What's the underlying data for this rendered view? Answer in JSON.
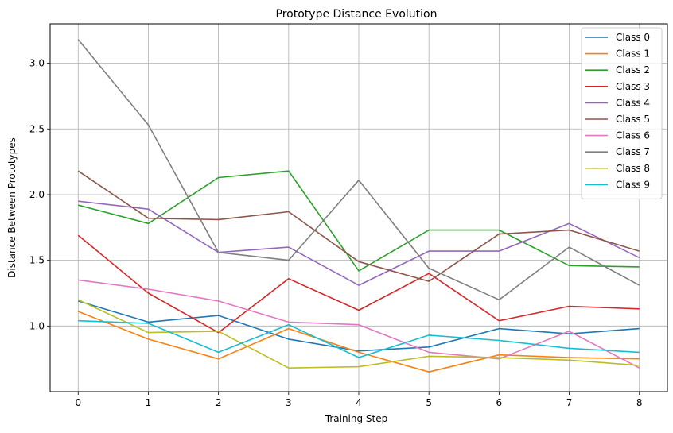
{
  "chart_data": {
    "type": "line",
    "title": "Prototype Distance Evolution",
    "xlabel": "Training Step",
    "ylabel": "Distance Between Prototypes",
    "x": [
      0,
      1,
      2,
      3,
      4,
      5,
      6,
      7,
      8
    ],
    "xlim": [
      -0.4,
      8.4
    ],
    "ylim": [
      0.5,
      3.3
    ],
    "xticks": [
      "0",
      "1",
      "2",
      "3",
      "4",
      "5",
      "6",
      "7",
      "8"
    ],
    "yticks": [
      "1.0",
      "1.5",
      "2.0",
      "2.5",
      "3.0"
    ],
    "grid": true,
    "legend_position": "top-right",
    "series": [
      {
        "name": "Class 0",
        "color": "#1f77b4",
        "values": [
          1.19,
          1.03,
          1.08,
          0.9,
          0.81,
          0.84,
          0.98,
          0.94,
          0.98
        ]
      },
      {
        "name": "Class 1",
        "color": "#ff7f0e",
        "values": [
          1.11,
          0.9,
          0.75,
          0.98,
          0.8,
          0.65,
          0.78,
          0.76,
          0.75
        ]
      },
      {
        "name": "Class 2",
        "color": "#2ca02c",
        "values": [
          1.92,
          1.78,
          2.13,
          2.18,
          1.42,
          1.73,
          1.73,
          1.46,
          1.45
        ]
      },
      {
        "name": "Class 3",
        "color": "#d62728",
        "values": [
          1.69,
          1.25,
          0.95,
          1.36,
          1.12,
          1.4,
          1.04,
          1.15,
          1.13
        ]
      },
      {
        "name": "Class 4",
        "color": "#9467bd",
        "values": [
          1.95,
          1.89,
          1.56,
          1.6,
          1.31,
          1.57,
          1.57,
          1.78,
          1.52
        ]
      },
      {
        "name": "Class 5",
        "color": "#8c564b",
        "values": [
          2.18,
          1.82,
          1.81,
          1.87,
          1.49,
          1.34,
          1.7,
          1.73,
          1.57
        ]
      },
      {
        "name": "Class 6",
        "color": "#e377c2",
        "values": [
          1.35,
          1.28,
          1.19,
          1.03,
          1.01,
          0.8,
          0.75,
          0.96,
          0.68
        ]
      },
      {
        "name": "Class 7",
        "color": "#7f7f7f",
        "values": [
          3.18,
          2.53,
          1.56,
          1.5,
          2.11,
          1.44,
          1.2,
          1.6,
          1.31
        ]
      },
      {
        "name": "Class 8",
        "color": "#bcbd22",
        "values": [
          1.2,
          0.95,
          0.96,
          0.68,
          0.69,
          0.77,
          0.76,
          0.74,
          0.7
        ]
      },
      {
        "name": "Class 9",
        "color": "#17becf",
        "values": [
          1.04,
          1.02,
          0.8,
          1.01,
          0.76,
          0.93,
          0.89,
          0.83,
          0.8
        ]
      }
    ]
  }
}
